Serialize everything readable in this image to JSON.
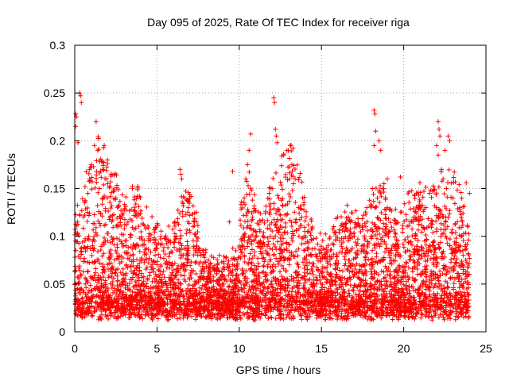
{
  "chart_data": {
    "type": "scatter",
    "title": "Day 095 of 2025, Rate Of TEC Index for receiver riga",
    "xlabel": "GPS time / hours",
    "ylabel": "ROTI / TECUs",
    "xlim": [
      0,
      25
    ],
    "ylim": [
      0,
      0.3
    ],
    "xticks": [
      0,
      5,
      10,
      15,
      20,
      25
    ],
    "xtick_labels": [
      "0",
      "5",
      "10",
      "15",
      "20",
      "25"
    ],
    "yticks": [
      0,
      0.05,
      0.1,
      0.15,
      0.2,
      0.25,
      0.3
    ],
    "ytick_labels": [
      "0",
      "0.05",
      "0.1",
      "0.15",
      "0.2",
      "0.25",
      "0.3"
    ],
    "grid": true,
    "marker": "+",
    "color": "#ff0000",
    "x_range_of_data": [
      0,
      24
    ],
    "series": [
      {
        "points": [
          [
            0.05,
            0.228
          ],
          [
            0.05,
            0.215
          ],
          [
            0.1,
            0.225
          ],
          [
            0.3,
            0.25
          ],
          [
            0.35,
            0.247
          ],
          [
            0.4,
            0.24
          ],
          [
            0.2,
            0.198
          ],
          [
            1.3,
            0.22
          ],
          [
            1.4,
            0.19
          ],
          [
            1.2,
            0.195
          ],
          [
            1.0,
            0.175
          ],
          [
            0.9,
            0.16
          ],
          [
            1.7,
            0.17
          ],
          [
            2.2,
            0.165
          ],
          [
            2.5,
            0.14
          ],
          [
            2.6,
            0.13
          ],
          [
            3.7,
            0.122
          ],
          [
            4.1,
            0.113
          ],
          [
            4.5,
            0.1
          ],
          [
            0.6,
            0.135
          ],
          [
            0.8,
            0.145
          ],
          [
            1.5,
            0.15
          ],
          [
            2.0,
            0.155
          ],
          [
            6.4,
            0.17
          ],
          [
            6.45,
            0.165
          ],
          [
            6.5,
            0.16
          ],
          [
            6.7,
            0.14
          ],
          [
            6.9,
            0.13
          ],
          [
            7.2,
            0.11
          ],
          [
            7.4,
            0.09
          ],
          [
            7.5,
            0.085
          ],
          [
            9.6,
            0.168
          ],
          [
            9.4,
            0.115
          ],
          [
            10.7,
            0.207
          ],
          [
            10.6,
            0.19
          ],
          [
            10.5,
            0.175
          ],
          [
            10.4,
            0.16
          ],
          [
            10.3,
            0.14
          ],
          [
            10.8,
            0.12
          ],
          [
            12.1,
            0.245
          ],
          [
            12.15,
            0.24
          ],
          [
            12.2,
            0.212
          ],
          [
            12.25,
            0.205
          ],
          [
            12.3,
            0.198
          ],
          [
            12.0,
            0.15
          ],
          [
            12.4,
            0.14
          ],
          [
            12.7,
            0.185
          ],
          [
            12.9,
            0.19
          ],
          [
            13.1,
            0.195
          ],
          [
            13.2,
            0.175
          ],
          [
            13.4,
            0.16
          ],
          [
            13.6,
            0.13
          ],
          [
            13.8,
            0.12
          ],
          [
            16.4,
            0.105
          ],
          [
            17.0,
            0.1
          ],
          [
            18.2,
            0.232
          ],
          [
            18.25,
            0.228
          ],
          [
            18.3,
            0.21
          ],
          [
            18.2,
            0.195
          ],
          [
            18.5,
            0.2
          ],
          [
            18.6,
            0.19
          ],
          [
            18.1,
            0.15
          ],
          [
            18.4,
            0.14
          ],
          [
            18.8,
            0.155
          ],
          [
            19.0,
            0.16
          ],
          [
            19.8,
            0.162
          ],
          [
            19.0,
            0.13
          ],
          [
            20.6,
            0.12
          ],
          [
            22.1,
            0.22
          ],
          [
            22.15,
            0.212
          ],
          [
            22.2,
            0.205
          ],
          [
            22.0,
            0.195
          ],
          [
            22.1,
            0.185
          ],
          [
            22.5,
            0.19
          ],
          [
            22.7,
            0.205
          ],
          [
            22.8,
            0.2
          ],
          [
            22.3,
            0.17
          ],
          [
            22.4,
            0.16
          ],
          [
            22.6,
            0.15
          ],
          [
            23.0,
            0.14
          ],
          [
            23.4,
            0.13
          ],
          [
            23.8,
            0.156
          ],
          [
            24.0,
            0.145
          ],
          [
            23.5,
            0.12
          ],
          [
            23.9,
            0.11
          ]
        ]
      }
    ],
    "noise_band_note_free": true
  }
}
